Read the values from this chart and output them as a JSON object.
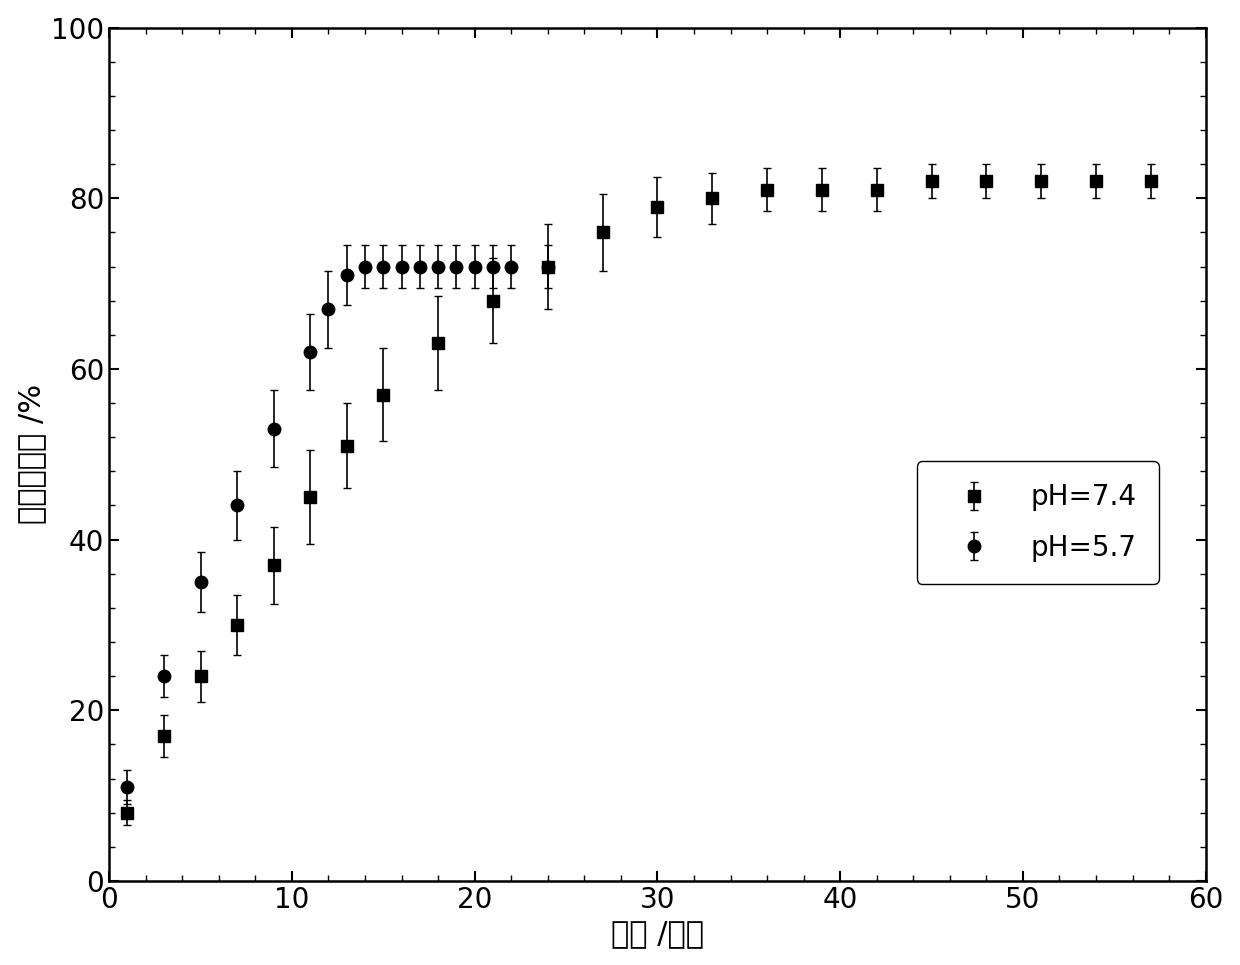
{
  "ph74_x": [
    1,
    3,
    5,
    7,
    9,
    11,
    13,
    15,
    18,
    21,
    24,
    27,
    30,
    33,
    36,
    39,
    42,
    45,
    48,
    51,
    54,
    57
  ],
  "ph74_y": [
    8,
    17,
    24,
    30,
    37,
    45,
    51,
    57,
    63,
    68,
    72,
    76,
    79,
    80,
    81,
    81,
    81,
    82,
    82,
    82,
    82,
    82
  ],
  "ph74_yerr": [
    1.5,
    2.5,
    3.0,
    3.5,
    4.5,
    5.5,
    5.0,
    5.5,
    5.5,
    5.0,
    5.0,
    4.5,
    3.5,
    3.0,
    2.5,
    2.5,
    2.5,
    2.0,
    2.0,
    2.0,
    2.0,
    2.0
  ],
  "ph57_x": [
    1,
    3,
    5,
    7,
    9,
    11,
    12,
    13,
    14,
    15,
    16,
    17,
    18,
    19,
    20,
    21,
    22,
    24
  ],
  "ph57_y": [
    11,
    24,
    35,
    44,
    53,
    62,
    67,
    71,
    72,
    72,
    72,
    72,
    72,
    72,
    72,
    72,
    72,
    72
  ],
  "ph57_yerr": [
    2.0,
    2.5,
    3.5,
    4.0,
    4.5,
    4.5,
    4.5,
    3.5,
    2.5,
    2.5,
    2.5,
    2.5,
    2.5,
    2.5,
    2.5,
    2.5,
    2.5,
    2.5
  ],
  "xlabel": "时间 /小时",
  "ylabel": "累计释放量 /%",
  "xlim": [
    0,
    60
  ],
  "ylim": [
    0,
    100
  ],
  "xticks": [
    0,
    10,
    20,
    30,
    40,
    50,
    60
  ],
  "yticks": [
    0,
    20,
    40,
    60,
    80,
    100
  ],
  "legend_ph74": "pH=7.4",
  "legend_ph57": "pH=5.7",
  "line_color": "#000000",
  "marker_sq": "s",
  "marker_ci": "o",
  "markersize": 9,
  "linewidth": 1.8,
  "capsize": 3,
  "xlabel_fontsize": 22,
  "ylabel_fontsize": 22,
  "tick_fontsize": 20,
  "legend_fontsize": 20,
  "minor_xtick_interval": 2,
  "minor_ytick_interval": 4,
  "figure_width": 12.4,
  "figure_height": 9.65,
  "dpi": 100
}
